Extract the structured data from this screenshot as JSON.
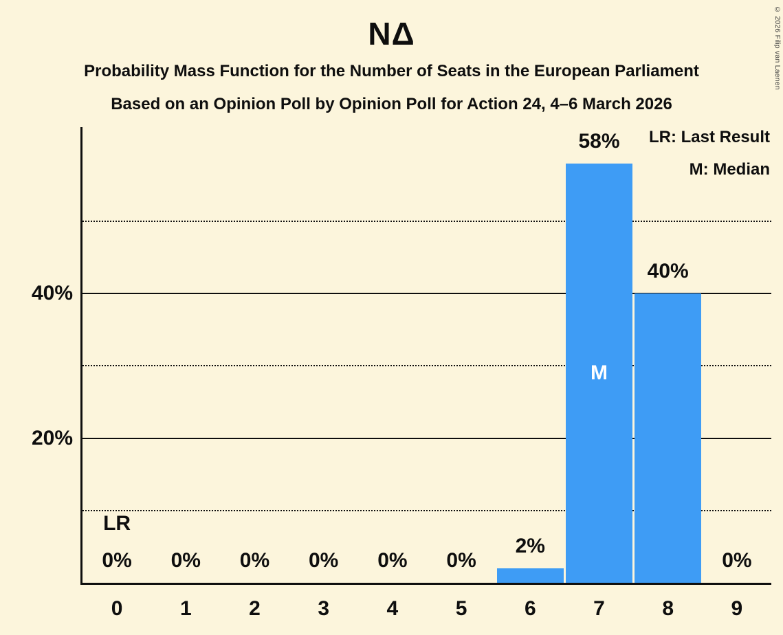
{
  "title": "ΝΔ",
  "subtitle1": "Probability Mass Function for the Number of Seats in the European Parliament",
  "subtitle2": "Based on an Opinion Poll by Opinion Poll for Action 24, 4–6 March 2026",
  "copyright": "© 2026 Filip van Laenen",
  "legend": {
    "lr": "LR: Last Result",
    "m": "M: Median"
  },
  "colors": {
    "background": "#fcf5dc",
    "bar": "#3e9cf5",
    "text": "#0e0e0e",
    "median_label": "#ffffff"
  },
  "chart_data": {
    "type": "bar",
    "title": "ΝΔ",
    "categories": [
      "0",
      "1",
      "2",
      "3",
      "4",
      "5",
      "6",
      "7",
      "8",
      "9"
    ],
    "values": [
      0,
      0,
      0,
      0,
      0,
      0,
      2,
      58,
      40,
      0
    ],
    "bar_labels": [
      "0%",
      "0%",
      "0%",
      "0%",
      "0%",
      "0%",
      "2%",
      "58%",
      "40%",
      "0%"
    ],
    "y_ticks": [
      {
        "label": "20%",
        "value": 20
      },
      {
        "label": "40%",
        "value": 40
      }
    ],
    "solid_gridlines": [
      20,
      40
    ],
    "dotted_gridlines": [
      10,
      30,
      50
    ],
    "ymax": 63,
    "xlabel": "",
    "ylabel": "",
    "legend_position": "top-right",
    "annotations": {
      "last_result_label": "LR",
      "last_result_category": "0",
      "median_label": "M",
      "median_category": "7"
    }
  }
}
